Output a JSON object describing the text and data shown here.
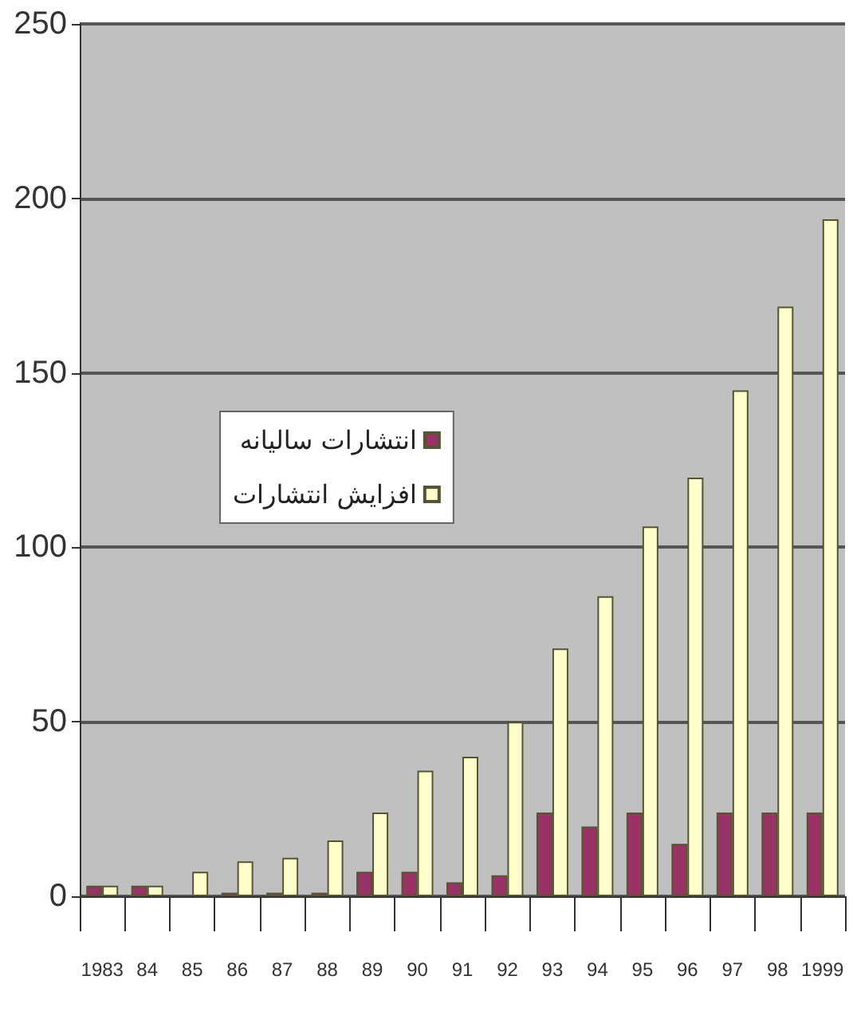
{
  "chart_data": {
    "type": "bar",
    "categories": [
      "1983",
      "84",
      "85",
      "86",
      "87",
      "88",
      "89",
      "90",
      "91",
      "92",
      "93",
      "94",
      "95",
      "96",
      "97",
      "98",
      "1999"
    ],
    "series": [
      {
        "name": "انتشارات سالیانه",
        "color": "#993366",
        "values": [
          3,
          3,
          null,
          1,
          1,
          1,
          7,
          7,
          4,
          6,
          24,
          20,
          24,
          15,
          24,
          24,
          24
        ]
      },
      {
        "name": "افزایش انتشارات",
        "color": "#ffffcc",
        "values": [
          3,
          3,
          7,
          10,
          11,
          16,
          24,
          36,
          40,
          50,
          71,
          86,
          106,
          120,
          145,
          169,
          194
        ]
      }
    ],
    "ylim": [
      0,
      250
    ],
    "yticks": [
      0,
      50,
      100,
      150,
      200,
      250
    ],
    "grid": "y",
    "legend": "left"
  }
}
